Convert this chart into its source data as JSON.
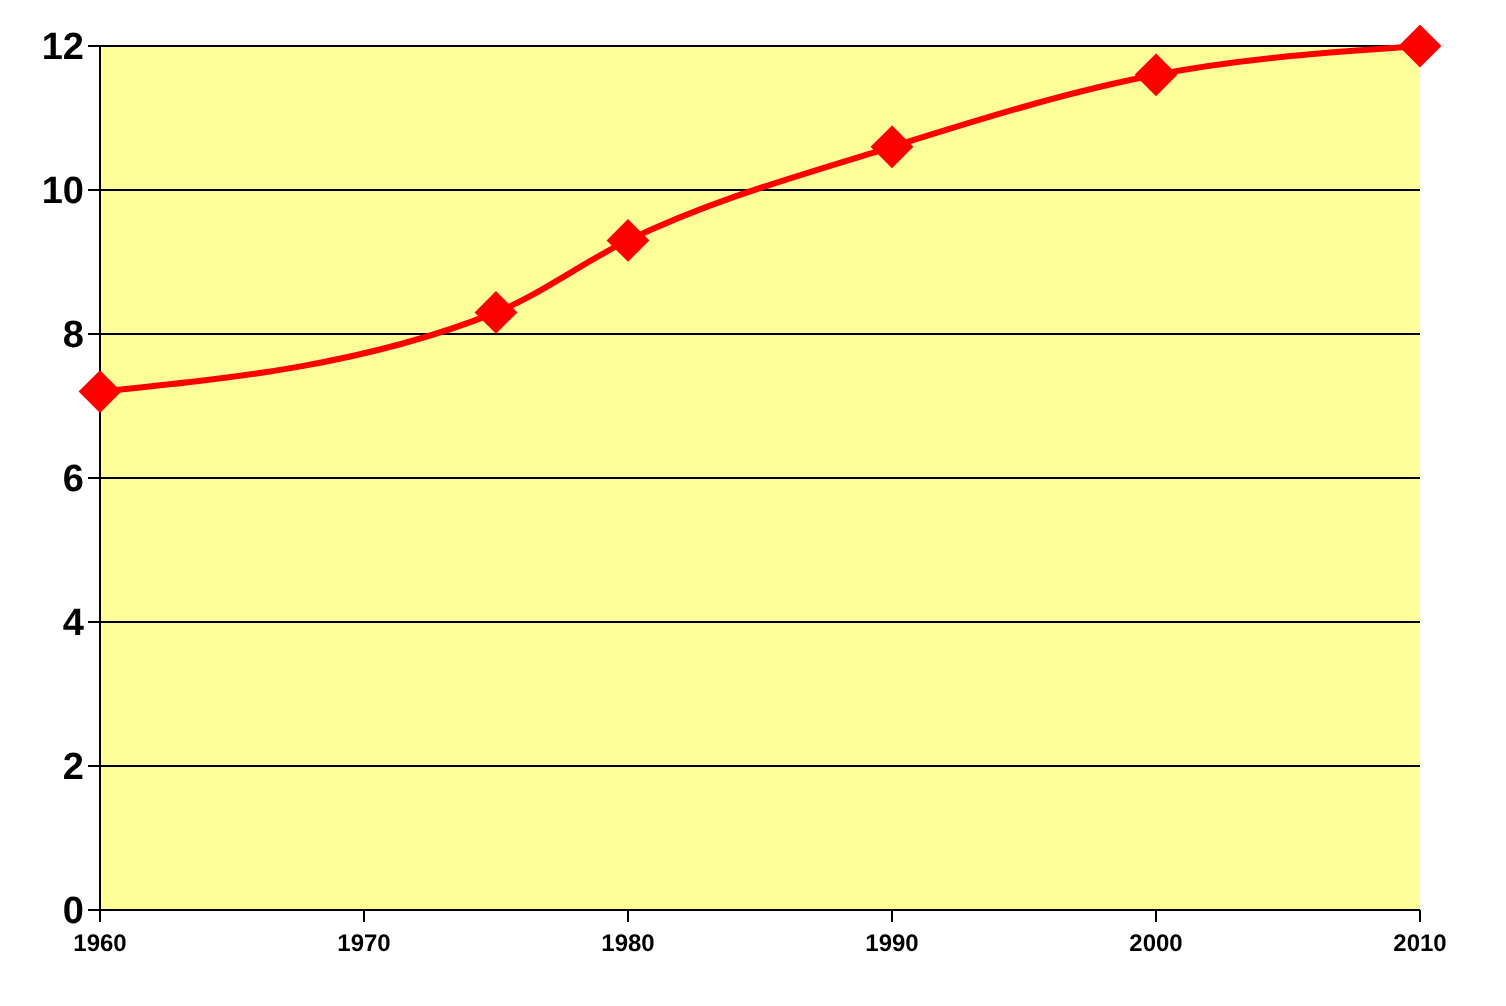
{
  "chart_data": {
    "type": "line",
    "x": [
      1960,
      1975,
      1980,
      1990,
      2000,
      2010
    ],
    "series": [
      {
        "color": "#ff0000",
        "values": [
          7.2,
          8.3,
          9.3,
          10.6,
          11.6,
          12
        ]
      }
    ],
    "xlim": [
      1960,
      2010
    ],
    "xticks": [
      1960,
      1970,
      1980,
      1990,
      2000,
      2010
    ],
    "ylim": [
      0,
      12
    ],
    "yticks": [
      0,
      2,
      4,
      6,
      8,
      10,
      12
    ],
    "grid": "y",
    "marker": "diamond",
    "line_style": "solid"
  }
}
